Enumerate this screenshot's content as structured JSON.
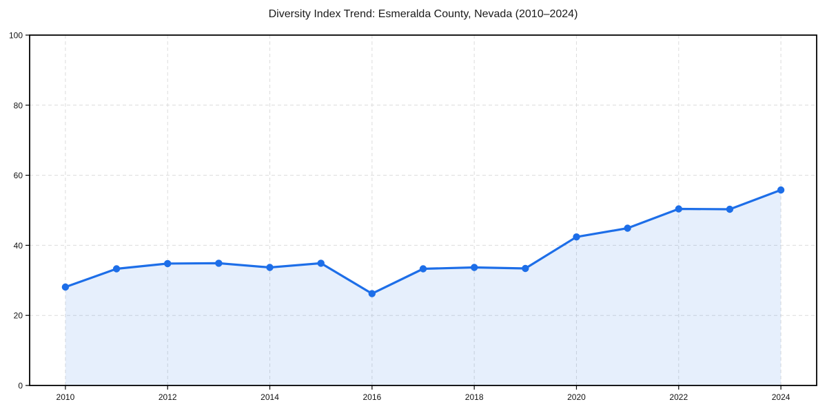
{
  "figure": {
    "background": "#ffffff"
  },
  "chart_data": {
    "type": "area",
    "title": "Diversity Index Trend: Esmeralda County, Nevada (2010–2024)",
    "series_name": "Diversity Index",
    "x": [
      2010,
      2011,
      2012,
      2013,
      2014,
      2015,
      2016,
      2017,
      2018,
      2019,
      2020,
      2021,
      2022,
      2023,
      2024
    ],
    "values": [
      28.1,
      33.3,
      34.8,
      34.9,
      33.7,
      34.9,
      26.2,
      33.3,
      33.7,
      33.4,
      42.4,
      44.9,
      50.4,
      50.3,
      55.8
    ],
    "xlabel": "",
    "ylabel": "",
    "xlim": [
      2009.3,
      2024.7
    ],
    "ylim": [
      0,
      100
    ],
    "xticks": [
      2010,
      2012,
      2014,
      2016,
      2018,
      2020,
      2022,
      2024
    ],
    "yticks": [
      0,
      20,
      40,
      60,
      80,
      100
    ],
    "grid": "dashed",
    "legend_position": "none",
    "colors": {
      "line": "#1d6ee8",
      "marker": "#1d6ee8",
      "area_fill": "rgba(29,110,232,0.11)",
      "grid": "#dcdcdc",
      "axis": "#000000",
      "tick_label": "#111111",
      "title": "#1a1a1a"
    }
  }
}
